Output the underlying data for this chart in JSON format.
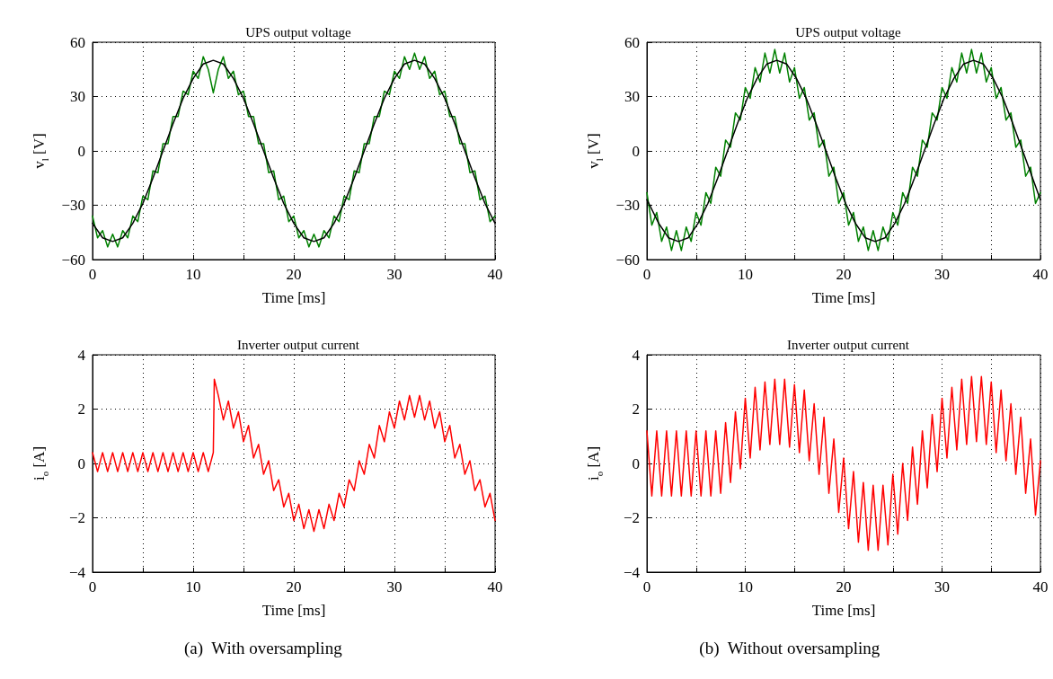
{
  "chart_data": [
    {
      "type": "line",
      "title": "UPS output voltage",
      "xlabel": "Time [ms]",
      "ylabel": "v$_{l}$ [V]",
      "grid": true,
      "xlim": [
        0,
        40
      ],
      "ylim": [
        -60,
        60
      ],
      "xticks": [
        0,
        {
          "value": 5,
          "label": null
        },
        10,
        {
          "value": 15,
          "label": null
        },
        20,
        {
          "value": 25,
          "label": null
        },
        30,
        {
          "value": 35,
          "label": null
        },
        40
      ],
      "yticks": [
        {
          "value": -60,
          "label": "−60"
        },
        {
          "value": -30,
          "label": "−30"
        },
        0,
        30,
        60
      ],
      "x": [
        0,
        0.5,
        1,
        1.5,
        2,
        2.5,
        3,
        3.5,
        4,
        4.5,
        5,
        5.5,
        6,
        6.5,
        7,
        7.5,
        8,
        8.5,
        9,
        9.5,
        10,
        10.5,
        11,
        11.5,
        12,
        12.5,
        13,
        13.5,
        14,
        14.5,
        15,
        15.5,
        16,
        16.5,
        17,
        17.5,
        18,
        18.5,
        19,
        19.5,
        20,
        20.5,
        21,
        21.5,
        22,
        22.5,
        23,
        23.5,
        24,
        24.5,
        25,
        25.5,
        26,
        26.5,
        27,
        27.5,
        28,
        28.5,
        29,
        29.5,
        30,
        30.5,
        31,
        31.5,
        32,
        32.5,
        33,
        33.5,
        34,
        34.5,
        35,
        35.5,
        36,
        36.5,
        37,
        37.5,
        38,
        38.5,
        39,
        39.5,
        40
      ],
      "series": [
        {
          "color": "#008000",
          "values": [
            -36,
            -48,
            -44,
            -53,
            -46,
            -53,
            -44,
            -48,
            -36,
            -39,
            -25,
            -27,
            -11,
            -12,
            4,
            4,
            19,
            19,
            33,
            31,
            44,
            40,
            52,
            45,
            32,
            45,
            52,
            40,
            44,
            31,
            33,
            19,
            19,
            4,
            4,
            -12,
            -11,
            -27,
            -25,
            -39,
            -36,
            -48,
            -44,
            -53,
            -46,
            -53,
            -44,
            -48,
            -36,
            -39,
            -25,
            -27,
            -11,
            -12,
            4,
            4,
            19,
            19,
            33,
            31,
            44,
            40,
            52,
            45,
            54,
            45,
            52,
            40,
            44,
            31,
            33,
            19,
            19,
            4,
            4,
            -12,
            -11,
            -27,
            -25,
            -39,
            -36
          ]
        },
        {
          "color": "#000000",
          "x": [
            0,
            1,
            2,
            3,
            4,
            5,
            6,
            7,
            8,
            9,
            10,
            11,
            12,
            13,
            14,
            15,
            16,
            17,
            18,
            19,
            20,
            21,
            22,
            23,
            24,
            25,
            26,
            27,
            28,
            29,
            30,
            31,
            32,
            33,
            34,
            35,
            36,
            37,
            38,
            39,
            40
          ],
          "values": [
            -40,
            -48,
            -50,
            -48,
            -40,
            -29,
            -15,
            0,
            15,
            29,
            40,
            48,
            50,
            48,
            40,
            29,
            15,
            0,
            -15,
            -29,
            -40,
            -48,
            -50,
            -48,
            -40,
            -29,
            -15,
            0,
            15,
            29,
            40,
            48,
            50,
            48,
            40,
            29,
            15,
            0,
            -15,
            -29,
            -40
          ]
        }
      ]
    },
    {
      "type": "line",
      "title": "UPS output voltage",
      "xlabel": "Time [ms]",
      "ylabel": "v$_{l}$ [V]",
      "grid": true,
      "xlim": [
        0,
        40
      ],
      "ylim": [
        -60,
        60
      ],
      "xticks": [
        0,
        {
          "value": 5,
          "label": null
        },
        10,
        {
          "value": 15,
          "label": null
        },
        20,
        {
          "value": 25,
          "label": null
        },
        30,
        {
          "value": 35,
          "label": null
        },
        40
      ],
      "yticks": [
        {
          "value": -60,
          "label": "−60"
        },
        {
          "value": -30,
          "label": "−30"
        },
        0,
        30,
        60
      ],
      "x": [
        0,
        0.5,
        1,
        1.5,
        2,
        2.5,
        3,
        3.5,
        4,
        4.5,
        5,
        5.5,
        6,
        6.5,
        7,
        7.5,
        8,
        8.5,
        9,
        9.5,
        10,
        10.5,
        11,
        11.5,
        12,
        12.5,
        13,
        13.5,
        14,
        14.5,
        15,
        15.5,
        16,
        16.5,
        17,
        17.5,
        18,
        18.5,
        19,
        19.5,
        20,
        20.5,
        21,
        21.5,
        22,
        22.5,
        23,
        23.5,
        24,
        24.5,
        25,
        25.5,
        26,
        26.5,
        27,
        27.5,
        28,
        28.5,
        29,
        29.5,
        30,
        30.5,
        31,
        31.5,
        32,
        32.5,
        33,
        33.5,
        34,
        34.5,
        35,
        35.5,
        36,
        36.5,
        37,
        37.5,
        38,
        38.5,
        39,
        39.5,
        40
      ],
      "series": [
        {
          "color": "#008000",
          "values": [
            -23,
            -41,
            -34,
            -50,
            -42,
            -55,
            -44,
            -55,
            -42,
            -50,
            -34,
            -41,
            -23,
            -29,
            -9,
            -14,
            6,
            2,
            21,
            17,
            35,
            29,
            46,
            38,
            54,
            43,
            56,
            43,
            54,
            38,
            46,
            29,
            35,
            17,
            21,
            2,
            6,
            -14,
            -9,
            -29,
            -23,
            -41,
            -34,
            -50,
            -42,
            -55,
            -44,
            -55,
            -42,
            -50,
            -34,
            -41,
            -23,
            -29,
            -9,
            -14,
            6,
            2,
            21,
            17,
            35,
            29,
            46,
            38,
            54,
            43,
            56,
            43,
            54,
            38,
            46,
            29,
            35,
            17,
            21,
            2,
            6,
            -14,
            -9,
            -29,
            -23
          ]
        },
        {
          "color": "#000000",
          "x": [
            0,
            0.2,
            1.2,
            2.2,
            3.2,
            4.2,
            5.2,
            6.2,
            7.2,
            8.2,
            9.2,
            10.2,
            11.2,
            12.2,
            13.2,
            14.2,
            15.2,
            16.2,
            17.2,
            18.2,
            19.2,
            20.2,
            21.2,
            22.2,
            23.2,
            24.2,
            25.2,
            26.2,
            27.2,
            28.2,
            29.2,
            30.2,
            31.2,
            32.2,
            33.2,
            34.2,
            35.2,
            36.2,
            37.2,
            38.2,
            39.2,
            40
          ],
          "values": [
            -27,
            -29,
            -40,
            -48,
            -50,
            -48,
            -40,
            -29,
            -15,
            0,
            15,
            29,
            40,
            48,
            50,
            48,
            40,
            29,
            15,
            0,
            -15,
            -29,
            -40,
            -48,
            -50,
            -48,
            -40,
            -29,
            -15,
            0,
            15,
            29,
            40,
            48,
            50,
            48,
            40,
            29,
            15,
            0,
            -15,
            -27
          ]
        }
      ]
    },
    {
      "type": "line",
      "title": "Inverter output current",
      "xlabel": "Time [ms]",
      "ylabel": "i$_{o}$ [A]",
      "grid": true,
      "xlim": [
        0,
        40
      ],
      "ylim": [
        -4,
        4
      ],
      "xticks": [
        0,
        {
          "value": 5,
          "label": null
        },
        10,
        {
          "value": 15,
          "label": null
        },
        20,
        {
          "value": 25,
          "label": null
        },
        30,
        {
          "value": 35,
          "label": null
        },
        40
      ],
      "yticks": [
        {
          "value": -4,
          "label": "−4"
        },
        {
          "value": -2,
          "label": "−2"
        },
        0,
        2,
        4
      ],
      "annotations": [
        "(a)  With oversampling"
      ],
      "x": [
        0,
        0.5,
        1,
        1.5,
        2,
        2.5,
        3,
        3.5,
        4,
        4.5,
        5,
        5.5,
        6,
        6.5,
        7,
        7.5,
        8,
        8.5,
        9,
        9.5,
        10,
        10.5,
        11,
        11.5,
        12,
        12.1,
        12.5,
        13,
        13.5,
        14,
        14.5,
        15,
        15.5,
        16,
        16.5,
        17,
        17.5,
        18,
        18.5,
        19,
        19.5,
        20,
        20.5,
        21,
        21.5,
        22,
        22.5,
        23,
        23.5,
        24,
        24.5,
        25,
        25.5,
        26,
        26.5,
        27,
        27.5,
        28,
        28.5,
        29,
        29.5,
        30,
        30.5,
        31,
        31.5,
        32,
        32.5,
        33,
        33.5,
        34,
        34.5,
        35,
        35.5,
        36,
        36.5,
        37,
        37.5,
        38,
        38.5,
        39,
        39.5,
        40
      ],
      "series": [
        {
          "color": "#ff0000",
          "values": [
            0.4,
            -0.3,
            0.4,
            -0.3,
            0.4,
            -0.3,
            0.4,
            -0.3,
            0.4,
            -0.3,
            0.4,
            -0.3,
            0.4,
            -0.3,
            0.4,
            -0.3,
            0.4,
            -0.3,
            0.4,
            -0.3,
            0.4,
            -0.3,
            0.4,
            -0.3,
            0.4,
            3.1,
            2.5,
            1.6,
            2.3,
            1.3,
            1.9,
            0.8,
            1.4,
            0.2,
            0.7,
            -0.4,
            0.1,
            -1.0,
            -0.6,
            -1.6,
            -1.1,
            -2.1,
            -1.5,
            -2.4,
            -1.7,
            -2.5,
            -1.7,
            -2.4,
            -1.5,
            -2.1,
            -1.1,
            -1.6,
            -0.6,
            -1.0,
            0.1,
            -0.4,
            0.7,
            0.2,
            1.4,
            0.8,
            1.9,
            1.3,
            2.3,
            1.6,
            2.5,
            1.7,
            2.5,
            1.6,
            2.3,
            1.3,
            1.9,
            0.8,
            1.4,
            0.2,
            0.7,
            -0.4,
            0.1,
            -1.0,
            -0.6,
            -1.6,
            -1.1,
            -2.1
          ]
        }
      ]
    },
    {
      "type": "line",
      "title": "Inverter output current",
      "xlabel": "Time [ms]",
      "ylabel": "i$_{o}$ [A]",
      "grid": true,
      "xlim": [
        0,
        40
      ],
      "ylim": [
        -4,
        4
      ],
      "xticks": [
        0,
        {
          "value": 5,
          "label": null
        },
        10,
        {
          "value": 15,
          "label": null
        },
        20,
        {
          "value": 25,
          "label": null
        },
        30,
        {
          "value": 35,
          "label": null
        },
        40
      ],
      "yticks": [
        {
          "value": -4,
          "label": "−4"
        },
        {
          "value": -2,
          "label": "−2"
        },
        0,
        2,
        4
      ],
      "annotations": [
        "(b)  Without oversampling"
      ],
      "x": [
        0,
        0.5,
        1,
        1.5,
        2,
        2.5,
        3,
        3.5,
        4,
        4.5,
        5,
        5.5,
        6,
        6.5,
        7,
        7.5,
        8,
        8.5,
        9,
        9.5,
        10,
        10.5,
        11,
        11.5,
        12,
        12.5,
        13,
        13.5,
        14,
        14.5,
        15,
        15.5,
        16,
        16.5,
        17,
        17.5,
        18,
        18.5,
        19,
        19.5,
        20,
        20.5,
        21,
        21.5,
        22,
        22.5,
        23,
        23.5,
        24,
        24.5,
        25,
        25.5,
        26,
        26.5,
        27,
        27.5,
        28,
        28.5,
        29,
        29.5,
        30,
        30.5,
        31,
        31.5,
        32,
        32.5,
        33,
        33.5,
        34,
        34.5,
        35,
        35.5,
        36,
        36.5,
        37,
        37.5,
        38,
        38.5,
        39,
        39.5,
        40
      ],
      "series": [
        {
          "color": "#ff0000",
          "values": [
            1.2,
            -1.2,
            1.2,
            -1.2,
            1.2,
            -1.2,
            1.2,
            -1.2,
            1.2,
            -1.2,
            1.2,
            -1.2,
            1.2,
            -1.2,
            1.2,
            -1.1,
            1.5,
            -0.7,
            1.9,
            -0.2,
            2.4,
            0.2,
            2.8,
            0.5,
            3.0,
            0.7,
            3.1,
            0.7,
            3.1,
            0.6,
            2.9,
            0.4,
            2.7,
            0.1,
            2.2,
            -0.4,
            1.7,
            -1.1,
            0.9,
            -1.8,
            0.2,
            -2.4,
            -0.3,
            -2.9,
            -0.7,
            -3.2,
            -0.8,
            -3.2,
            -0.8,
            -3.0,
            -0.4,
            -2.6,
            0,
            -2.1,
            0.6,
            -1.5,
            1.2,
            -0.9,
            1.8,
            -0.3,
            2.4,
            0.2,
            2.8,
            0.5,
            3.1,
            0.7,
            3.2,
            0.8,
            3.2,
            0.7,
            3.0,
            0.4,
            2.7,
            0.1,
            2.2,
            -0.4,
            1.7,
            -1.1,
            0.9,
            -1.9,
            0.1
          ]
        }
      ]
    }
  ]
}
